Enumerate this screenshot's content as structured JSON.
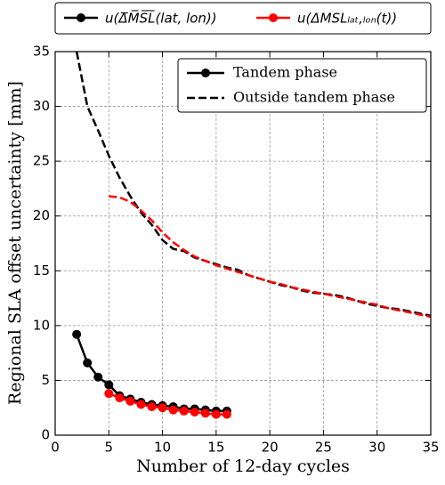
{
  "chart_data": {
    "type": "line",
    "xlabel": "Number of 12-day cycles",
    "ylabel": "Regional SLA offset uncertainty [mm]",
    "xlim": [
      0,
      35
    ],
    "ylim": [
      0,
      35
    ],
    "xticks": [
      0,
      5,
      10,
      15,
      20,
      25,
      30,
      35
    ],
    "yticks": [
      0,
      5,
      10,
      15,
      20,
      25,
      30,
      35
    ],
    "grid": true,
    "legend_quantity": [
      {
        "label": "u(Δ̅M̅S̅L̅(lat, lon))",
        "color": "#000000"
      },
      {
        "label": "u(ΔMSLₗₐₜ,ₗₒₙ(t))",
        "color": "#ff0000"
      }
    ],
    "legend_phase": [
      {
        "label": "Tandem phase",
        "dashed": false,
        "marker": true
      },
      {
        "label": "Outside tandem phase",
        "dashed": true,
        "marker": false
      }
    ],
    "series": [
      {
        "quantity": 0,
        "phase": 0,
        "x": [
          2,
          3,
          4,
          5,
          6,
          7,
          8,
          9,
          10,
          11,
          12,
          13,
          14,
          15,
          16
        ],
        "values": [
          9.2,
          6.6,
          5.3,
          4.6,
          3.6,
          3.3,
          3.0,
          2.8,
          2.7,
          2.6,
          2.4,
          2.4,
          2.3,
          2.2,
          2.2
        ]
      },
      {
        "quantity": 1,
        "phase": 0,
        "x": [
          5,
          6,
          7,
          8,
          9,
          10,
          11,
          12,
          13,
          14,
          15,
          16
        ],
        "values": [
          3.8,
          3.4,
          3.1,
          2.8,
          2.6,
          2.5,
          2.3,
          2.2,
          2.1,
          2.0,
          1.9,
          1.9
        ]
      },
      {
        "quantity": 0,
        "phase": 1,
        "x": [
          2,
          3,
          4,
          5,
          6,
          7,
          8,
          9,
          10,
          11,
          12,
          13,
          14,
          15,
          16,
          17,
          18,
          19,
          20,
          21,
          22,
          23,
          24,
          25,
          26,
          27,
          28,
          29,
          30,
          31,
          32,
          33,
          34,
          35
        ],
        "values": [
          35,
          30,
          27.8,
          25.5,
          23.5,
          21.8,
          20.3,
          19.2,
          17.8,
          17.0,
          16.8,
          16.2,
          15.9,
          15.6,
          15.3,
          15.1,
          14.6,
          14.3,
          14.0,
          13.7,
          13.5,
          13.2,
          13.0,
          12.9,
          12.8,
          12.6,
          12.3,
          12.0,
          11.8,
          11.6,
          11.5,
          11.3,
          11.1,
          10.9
        ]
      },
      {
        "quantity": 1,
        "phase": 1,
        "x": [
          5,
          6,
          7,
          8,
          9,
          10,
          11,
          12,
          13,
          14,
          15,
          16,
          17,
          18,
          19,
          20,
          21,
          22,
          23,
          24,
          25,
          26,
          27,
          28,
          29,
          30,
          31,
          32,
          33,
          34,
          35
        ],
        "values": [
          21.8,
          21.7,
          21.3,
          20.5,
          19.6,
          18.5,
          17.6,
          16.9,
          16.3,
          15.9,
          15.5,
          15.2,
          14.9,
          14.6,
          14.3,
          14.0,
          13.8,
          13.5,
          13.3,
          13.1,
          12.9,
          12.7,
          12.5,
          12.3,
          12.1,
          11.9,
          11.6,
          11.4,
          11.2,
          11.0,
          10.8
        ]
      }
    ]
  }
}
